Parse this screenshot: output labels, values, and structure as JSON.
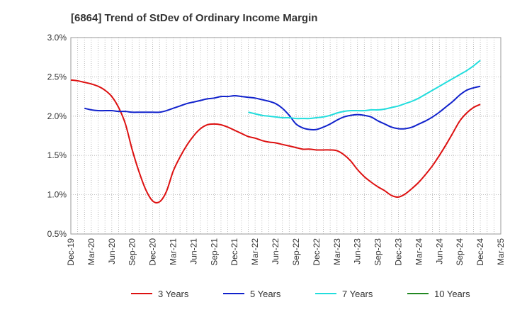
{
  "chart_data": {
    "type": "line",
    "title": "[6864]  Trend of StDev of Ordinary Income Margin",
    "xlabel": "",
    "ylabel": "",
    "x_ticks": [
      "Dec-19",
      "Mar-20",
      "Jun-20",
      "Sep-20",
      "Dec-20",
      "Mar-21",
      "Jun-21",
      "Sep-21",
      "Dec-21",
      "Mar-22",
      "Jun-22",
      "Sep-22",
      "Dec-22",
      "Mar-23",
      "Jun-23",
      "Sep-23",
      "Dec-23",
      "Mar-24",
      "Jun-24",
      "Sep-24",
      "Dec-24",
      "Mar-25"
    ],
    "y_ticks": [
      "0.5%",
      "1.0%",
      "1.5%",
      "2.0%",
      "2.5%",
      "3.0%"
    ],
    "ylim": [
      0.5,
      3.0
    ],
    "y_unit": "%",
    "grid": true,
    "legend_position": "bottom",
    "series": [
      {
        "name": "3 Years",
        "color": "#dd1111",
        "points": [
          [
            "Dec-19",
            2.46
          ],
          [
            "Jan-20",
            2.45
          ],
          [
            "Feb-20",
            2.43
          ],
          [
            "Mar-20",
            2.41
          ],
          [
            "Apr-20",
            2.38
          ],
          [
            "May-20",
            2.33
          ],
          [
            "Jun-20",
            2.25
          ],
          [
            "Jul-20",
            2.11
          ],
          [
            "Aug-20",
            1.9
          ],
          [
            "Sep-20",
            1.57
          ],
          [
            "Oct-20",
            1.29
          ],
          [
            "Nov-20",
            1.06
          ],
          [
            "Dec-20",
            0.92
          ],
          [
            "Jan-21",
            0.91
          ],
          [
            "Feb-21",
            1.04
          ],
          [
            "Mar-21",
            1.3
          ],
          [
            "Apr-21",
            1.48
          ],
          [
            "May-21",
            1.63
          ],
          [
            "Jun-21",
            1.75
          ],
          [
            "Jul-21",
            1.84
          ],
          [
            "Aug-21",
            1.89
          ],
          [
            "Sep-21",
            1.9
          ],
          [
            "Oct-21",
            1.89
          ],
          [
            "Nov-21",
            1.86
          ],
          [
            "Dec-21",
            1.82
          ],
          [
            "Jan-22",
            1.78
          ],
          [
            "Feb-22",
            1.74
          ],
          [
            "Mar-22",
            1.72
          ],
          [
            "Apr-22",
            1.69
          ],
          [
            "May-22",
            1.67
          ],
          [
            "Jun-22",
            1.66
          ],
          [
            "Jul-22",
            1.64
          ],
          [
            "Aug-22",
            1.62
          ],
          [
            "Sep-22",
            1.6
          ],
          [
            "Oct-22",
            1.58
          ],
          [
            "Nov-22",
            1.58
          ],
          [
            "Dec-22",
            1.57
          ],
          [
            "Jan-23",
            1.57
          ],
          [
            "Feb-23",
            1.57
          ],
          [
            "Mar-23",
            1.56
          ],
          [
            "Apr-23",
            1.51
          ],
          [
            "May-23",
            1.43
          ],
          [
            "Jun-23",
            1.32
          ],
          [
            "Jul-23",
            1.23
          ],
          [
            "Aug-23",
            1.16
          ],
          [
            "Sep-23",
            1.1
          ],
          [
            "Oct-23",
            1.05
          ],
          [
            "Nov-23",
            0.99
          ],
          [
            "Dec-23",
            0.97
          ],
          [
            "Jan-24",
            1.01
          ],
          [
            "Feb-24",
            1.08
          ],
          [
            "Mar-24",
            1.16
          ],
          [
            "Apr-24",
            1.26
          ],
          [
            "May-24",
            1.37
          ],
          [
            "Jun-24",
            1.5
          ],
          [
            "Jul-24",
            1.64
          ],
          [
            "Aug-24",
            1.79
          ],
          [
            "Sep-24",
            1.94
          ],
          [
            "Oct-24",
            2.04
          ],
          [
            "Nov-24",
            2.11
          ],
          [
            "Dec-24",
            2.15
          ]
        ]
      },
      {
        "name": "5 Years",
        "color": "#1122cc",
        "points": [
          [
            "Feb-20",
            2.1
          ],
          [
            "Mar-20",
            2.08
          ],
          [
            "Apr-20",
            2.07
          ],
          [
            "May-20",
            2.07
          ],
          [
            "Jun-20",
            2.07
          ],
          [
            "Jul-20",
            2.06
          ],
          [
            "Aug-20",
            2.06
          ],
          [
            "Sep-20",
            2.05
          ],
          [
            "Oct-20",
            2.05
          ],
          [
            "Nov-20",
            2.05
          ],
          [
            "Dec-20",
            2.05
          ],
          [
            "Jan-21",
            2.05
          ],
          [
            "Feb-21",
            2.07
          ],
          [
            "Mar-21",
            2.1
          ],
          [
            "Apr-21",
            2.13
          ],
          [
            "May-21",
            2.16
          ],
          [
            "Jun-21",
            2.18
          ],
          [
            "Jul-21",
            2.2
          ],
          [
            "Aug-21",
            2.22
          ],
          [
            "Sep-21",
            2.23
          ],
          [
            "Oct-21",
            2.25
          ],
          [
            "Nov-21",
            2.25
          ],
          [
            "Dec-21",
            2.26
          ],
          [
            "Jan-22",
            2.25
          ],
          [
            "Feb-22",
            2.24
          ],
          [
            "Mar-22",
            2.23
          ],
          [
            "Apr-22",
            2.21
          ],
          [
            "May-22",
            2.19
          ],
          [
            "Jun-22",
            2.16
          ],
          [
            "Jul-22",
            2.1
          ],
          [
            "Aug-22",
            2.01
          ],
          [
            "Sep-22",
            1.9
          ],
          [
            "Oct-22",
            1.85
          ],
          [
            "Nov-22",
            1.83
          ],
          [
            "Dec-22",
            1.83
          ],
          [
            "Jan-23",
            1.86
          ],
          [
            "Feb-23",
            1.9
          ],
          [
            "Mar-23",
            1.95
          ],
          [
            "Apr-23",
            1.99
          ],
          [
            "May-23",
            2.01
          ],
          [
            "Jun-23",
            2.02
          ],
          [
            "Jul-23",
            2.01
          ],
          [
            "Aug-23",
            1.99
          ],
          [
            "Sep-23",
            1.94
          ],
          [
            "Oct-23",
            1.9
          ],
          [
            "Nov-23",
            1.86
          ],
          [
            "Dec-23",
            1.84
          ],
          [
            "Jan-24",
            1.84
          ],
          [
            "Feb-24",
            1.86
          ],
          [
            "Mar-24",
            1.9
          ],
          [
            "Apr-24",
            1.94
          ],
          [
            "May-24",
            1.99
          ],
          [
            "Jun-24",
            2.05
          ],
          [
            "Jul-24",
            2.12
          ],
          [
            "Aug-24",
            2.19
          ],
          [
            "Sep-24",
            2.27
          ],
          [
            "Oct-24",
            2.33
          ],
          [
            "Nov-24",
            2.36
          ],
          [
            "Dec-24",
            2.38
          ]
        ]
      },
      {
        "name": "7 Years",
        "color": "#22dddd",
        "points": [
          [
            "Feb-22",
            2.05
          ],
          [
            "Mar-22",
            2.03
          ],
          [
            "Apr-22",
            2.01
          ],
          [
            "May-22",
            2.0
          ],
          [
            "Jun-22",
            1.99
          ],
          [
            "Jul-22",
            1.98
          ],
          [
            "Aug-22",
            1.98
          ],
          [
            "Sep-22",
            1.97
          ],
          [
            "Oct-22",
            1.97
          ],
          [
            "Nov-22",
            1.97
          ],
          [
            "Dec-22",
            1.98
          ],
          [
            "Jan-23",
            1.99
          ],
          [
            "Feb-23",
            2.01
          ],
          [
            "Mar-23",
            2.04
          ],
          [
            "Apr-23",
            2.06
          ],
          [
            "May-23",
            2.07
          ],
          [
            "Jun-23",
            2.07
          ],
          [
            "Jul-23",
            2.07
          ],
          [
            "Aug-23",
            2.08
          ],
          [
            "Sep-23",
            2.08
          ],
          [
            "Oct-23",
            2.09
          ],
          [
            "Nov-23",
            2.11
          ],
          [
            "Dec-23",
            2.13
          ],
          [
            "Jan-24",
            2.16
          ],
          [
            "Feb-24",
            2.19
          ],
          [
            "Mar-24",
            2.23
          ],
          [
            "Apr-24",
            2.28
          ],
          [
            "May-24",
            2.33
          ],
          [
            "Jun-24",
            2.38
          ],
          [
            "Jul-24",
            2.43
          ],
          [
            "Aug-24",
            2.48
          ],
          [
            "Sep-24",
            2.53
          ],
          [
            "Oct-24",
            2.58
          ],
          [
            "Nov-24",
            2.64
          ],
          [
            "Dec-24",
            2.71
          ]
        ]
      },
      {
        "name": "10 Years",
        "color": "#228822",
        "points": []
      }
    ]
  }
}
